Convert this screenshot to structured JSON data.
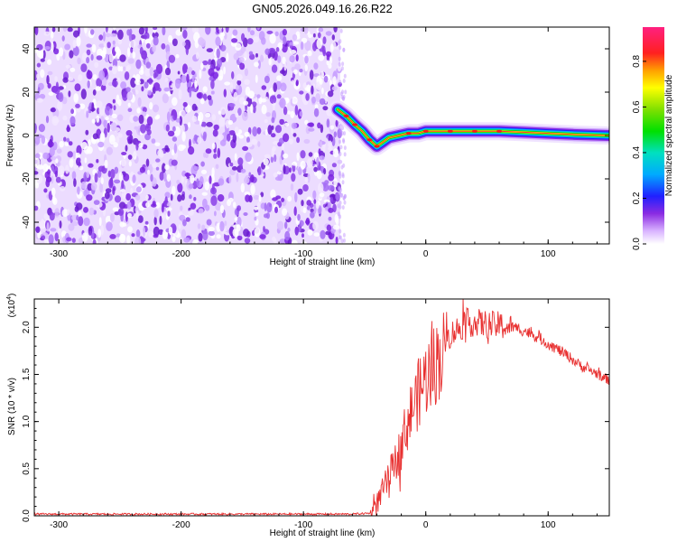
{
  "title": "GN05.2026.049.16.26.R22",
  "chart_data": [
    {
      "type": "heatmap",
      "xlabel": "Height of straight line (km)",
      "ylabel": "Frequency (Hz)",
      "xlim": [
        -320,
        150
      ],
      "ylim": [
        -50,
        50
      ],
      "xticks": [
        -300,
        -200,
        -100,
        0,
        100
      ],
      "yticks": [
        -40,
        -20,
        0,
        20,
        40
      ],
      "noise_region_x": [
        -320,
        -70
      ],
      "ridge": {
        "x": [
          -72,
          -65,
          -58,
          -52,
          -46,
          -40,
          -35,
          -30,
          -22,
          -14,
          -6,
          0,
          20,
          40,
          60,
          80,
          100,
          120,
          150
        ],
        "y": [
          12,
          9,
          5,
          2,
          -2,
          -5,
          -3,
          -1,
          0,
          1,
          1,
          2,
          2,
          2,
          2,
          1.5,
          1,
          0.5,
          0
        ],
        "peak_x": [
          -65,
          -58,
          -46,
          -40,
          -14,
          0,
          20,
          40,
          60
        ]
      },
      "colorbar": {
        "label": "Normalized spectral amplitude",
        "range": [
          0,
          0.95
        ],
        "ticks": [
          0.0,
          0.2,
          0.4,
          0.6,
          0.8
        ]
      }
    },
    {
      "type": "line",
      "xlabel": "Height of straight line (km)",
      "ylabel": "SNR (10 * v/v)",
      "exponent_label": "(x10",
      "exponent_power": "4",
      "exponent_close": ")",
      "xlim": [
        -320,
        150
      ],
      "ylim": [
        0,
        2.3
      ],
      "xticks": [
        -300,
        -200,
        -100,
        0,
        100
      ],
      "yticks": [
        0.0,
        0.5,
        1.0,
        1.5,
        2.0
      ],
      "series": [
        {
          "color": "#e83030",
          "x": [
            -320,
            -60,
            -45,
            -40,
            -35,
            -30,
            -25,
            -20,
            -15,
            -10,
            -5,
            0,
            5,
            10,
            15,
            20,
            25,
            30,
            35,
            40,
            45,
            50,
            55,
            60,
            65,
            70,
            75,
            80,
            85,
            90,
            95,
            100,
            105,
            110,
            115,
            120,
            125,
            130,
            135,
            140,
            145,
            150
          ],
          "y": [
            0.02,
            0.02,
            0.03,
            0.15,
            0.3,
            0.45,
            0.6,
            0.8,
            1.05,
            1.25,
            1.4,
            1.55,
            1.65,
            1.75,
            1.85,
            1.95,
            2.0,
            2.05,
            2.08,
            2.08,
            2.07,
            2.06,
            2.05,
            2.05,
            2.04,
            2.02,
            2.0,
            1.98,
            1.95,
            1.92,
            1.88,
            1.84,
            1.8,
            1.76,
            1.72,
            1.67,
            1.62,
            1.58,
            1.55,
            1.52,
            1.48,
            1.45
          ]
        }
      ]
    }
  ]
}
